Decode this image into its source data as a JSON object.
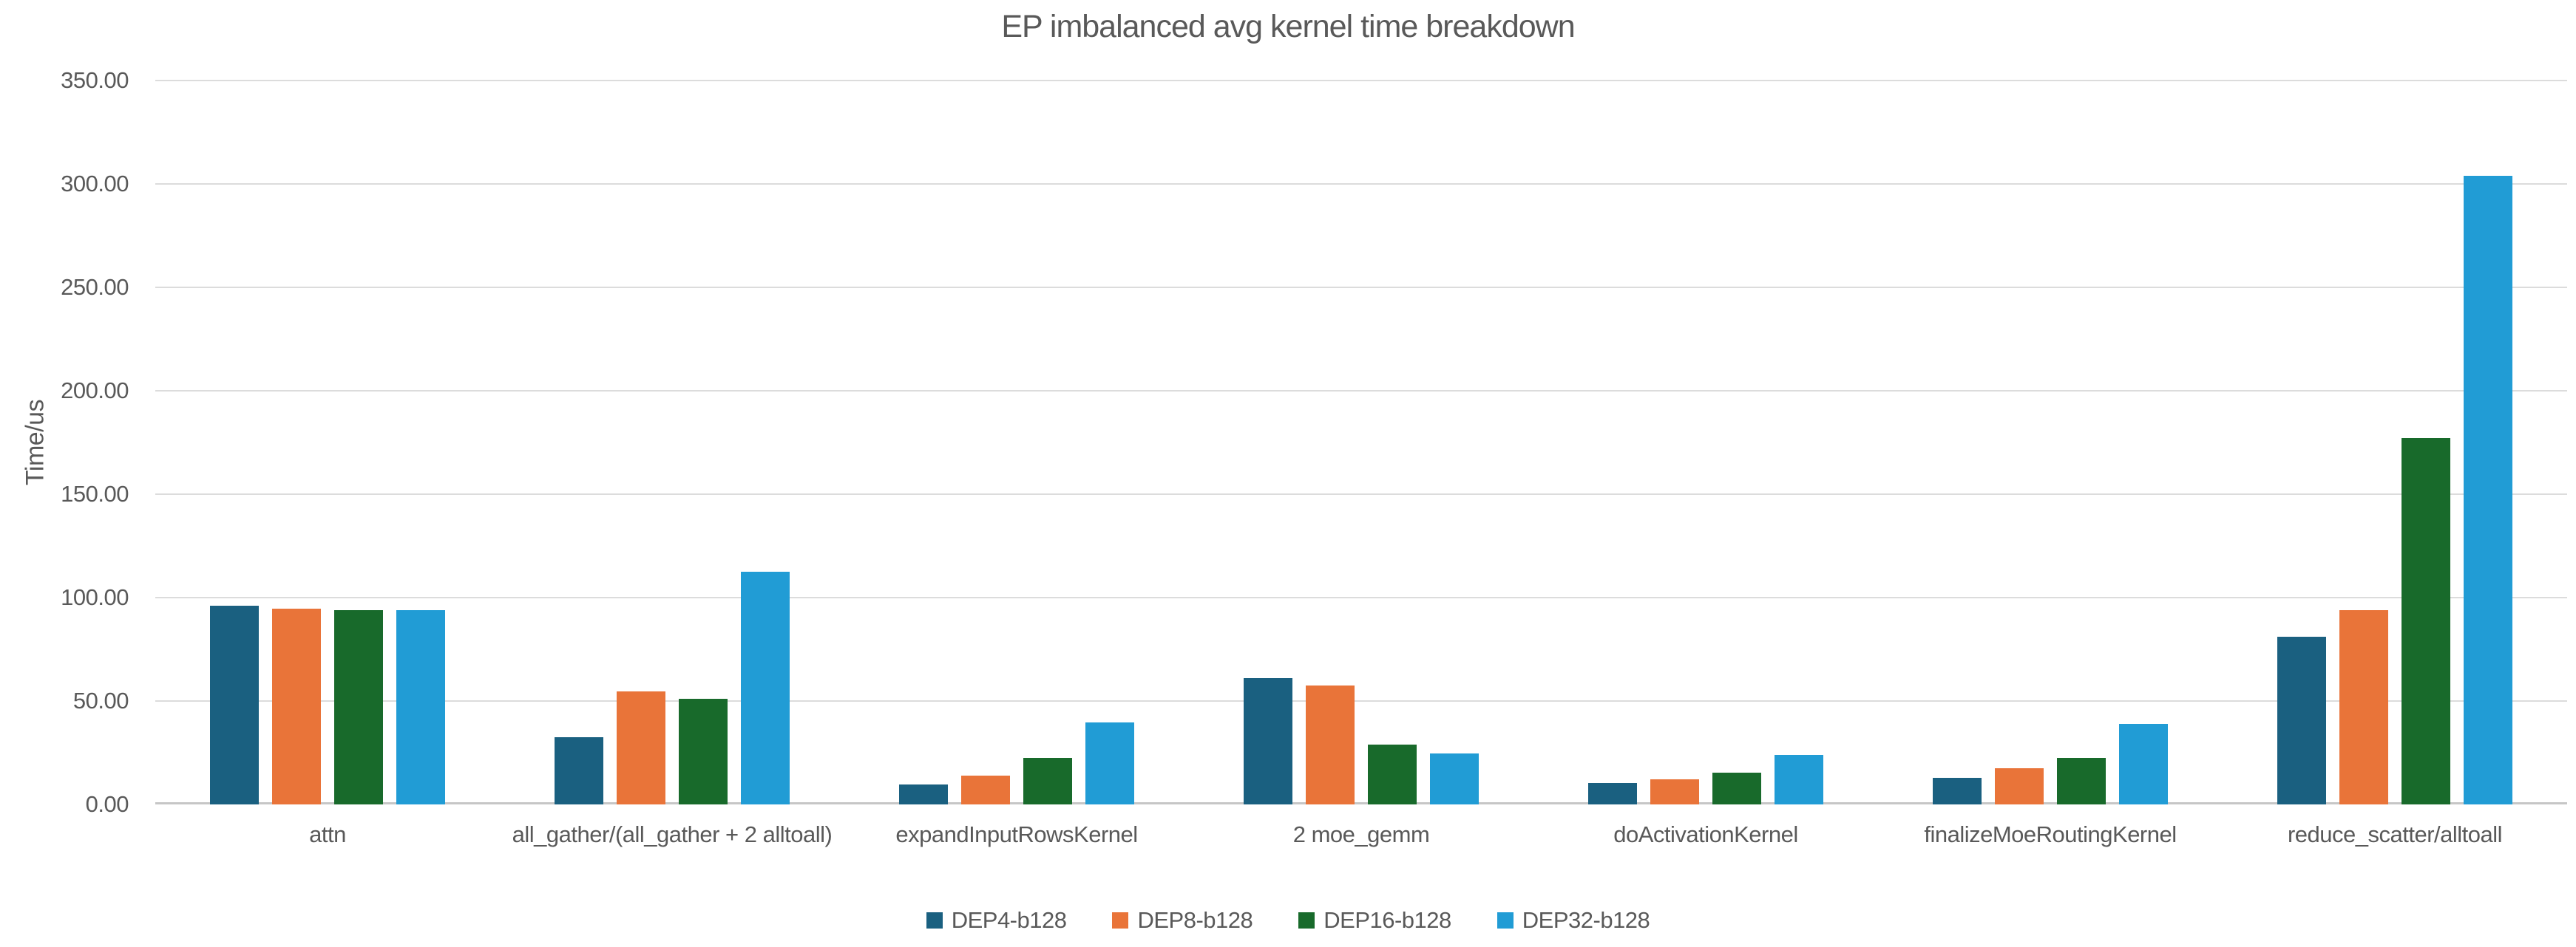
{
  "title": "EP imbalanced avg kernel time breakdown",
  "y_axis": {
    "label": "Time/us",
    "tick_labels": [
      "0.00",
      "50.00",
      "100.00",
      "150.00",
      "200.00",
      "250.00",
      "300.00",
      "350.00"
    ]
  },
  "legend_items": [
    "DEP4-b128",
    "DEP8-b128",
    "DEP16-b128",
    "DEP32-b128"
  ],
  "chart_data": {
    "type": "bar",
    "title": "EP imbalanced avg kernel time breakdown",
    "xlabel": "",
    "ylabel": "Time/us",
    "ylim": [
      0,
      350
    ],
    "ytick_step": 50,
    "ytick_decimals": 2,
    "grid": true,
    "legend_position": "bottom",
    "categories": [
      "attn",
      "all_gather/(all_gather + 2 alltoall)",
      "expandInputRowsKernel",
      "2 moe_gemm",
      "doActivationKernel",
      "finalizeMoeRoutingKernel",
      "reduce_scatter/alltoall"
    ],
    "series": [
      {
        "name": "DEP4-b128",
        "color": "#1A6080",
        "values": [
          96,
          32.5,
          9.5,
          61,
          10.5,
          13,
          81
        ]
      },
      {
        "name": "DEP8-b128",
        "color": "#E97439",
        "values": [
          94.5,
          54.5,
          14,
          57.5,
          12,
          17.5,
          94
        ]
      },
      {
        "name": "DEP16-b128",
        "color": "#186A2B",
        "values": [
          94,
          51,
          22.5,
          29,
          15.5,
          22.5,
          177
        ]
      },
      {
        "name": "DEP32-b128",
        "color": "#219CD5",
        "values": [
          94,
          112.5,
          39.5,
          24.5,
          24,
          39,
          304
        ]
      }
    ]
  },
  "style": {
    "text_color": "#595959",
    "gridline_color": "#DCDCDC",
    "axis_line_color": "#C6C6C6",
    "background": "#FFFFFF"
  }
}
